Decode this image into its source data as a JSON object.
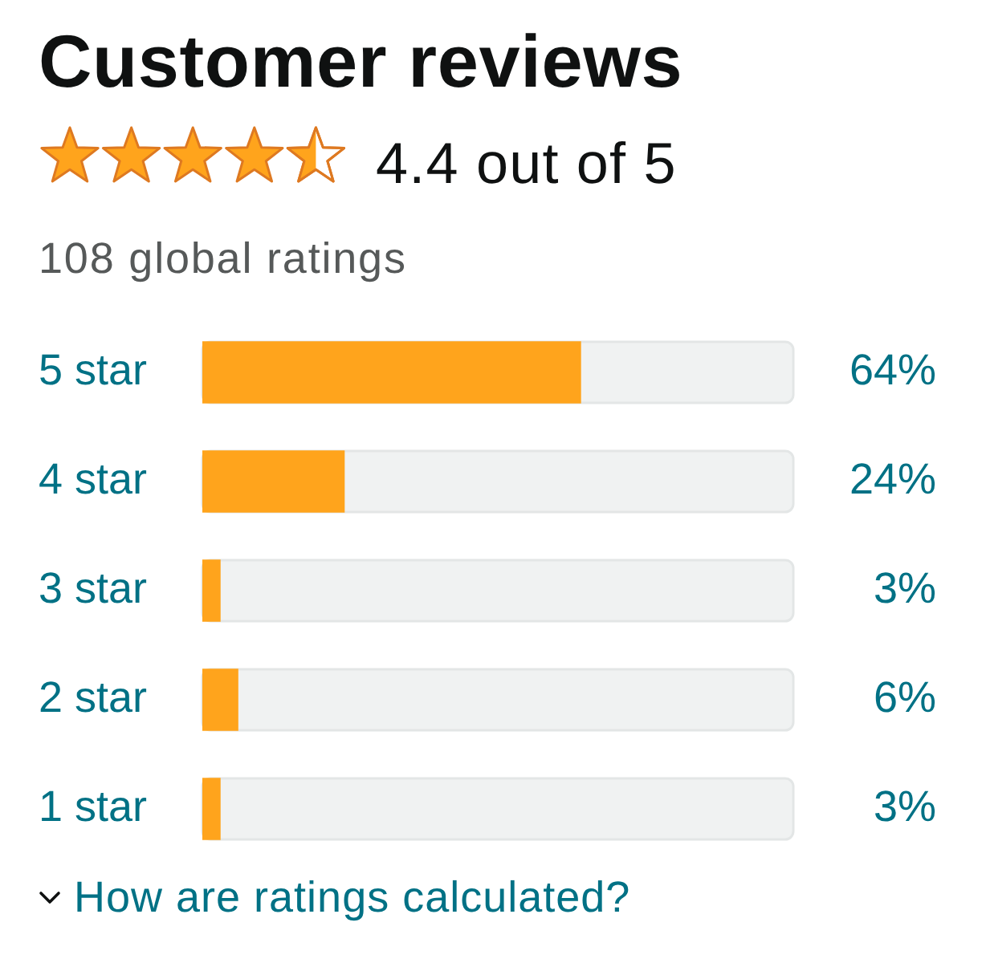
{
  "chart_data": {
    "type": "bar",
    "orientation": "horizontal",
    "title": "Customer reviews",
    "subtitle": "4.4 out of 5",
    "categories": [
      "5 star",
      "4 star",
      "3 star",
      "2 star",
      "1 star"
    ],
    "values": [
      64,
      24,
      3,
      6,
      3
    ],
    "value_labels": [
      "64%",
      "24%",
      "3%",
      "6%",
      "3%"
    ],
    "color": "#ffa41c",
    "xlim": [
      0,
      100
    ],
    "tick_labels": "y",
    "annotations": [
      "108 global ratings",
      "How are ratings calculated?"
    ]
  }
}
